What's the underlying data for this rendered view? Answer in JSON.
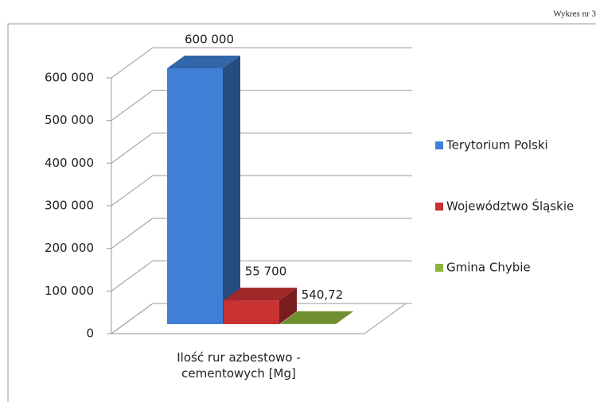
{
  "chart_data": {
    "type": "bar3d",
    "title": "Wykres nr 3",
    "categories": [
      "Ilość rur azbestowo - cementowych [Mg]"
    ],
    "series": [
      {
        "name": "Terytorium Polski",
        "color": "#3f7fd6",
        "values": [
          600000
        ],
        "value_labels": [
          "600 000"
        ]
      },
      {
        "name": "Województwo Śląskie",
        "color": "#c83232",
        "values": [
          55700
        ],
        "value_labels": [
          "55 700"
        ]
      },
      {
        "name": "Gmina Chybie",
        "color": "#8ab43c",
        "values": [
          540.72
        ],
        "value_labels": [
          "540,72"
        ]
      }
    ],
    "ylim": [
      0,
      600000
    ],
    "yticks": [
      0,
      {
        "value": 100000,
        "label": "100 000"
      },
      {
        "value": 200000,
        "label": "200 000"
      },
      {
        "value": 300000,
        "label": "300 000"
      },
      {
        "value": 400000,
        "label": "400 000"
      },
      {
        "value": 500000,
        "label": "500 000"
      },
      {
        "value": 600000,
        "label": "600 000"
      }
    ],
    "grid": true,
    "legend": "right"
  }
}
